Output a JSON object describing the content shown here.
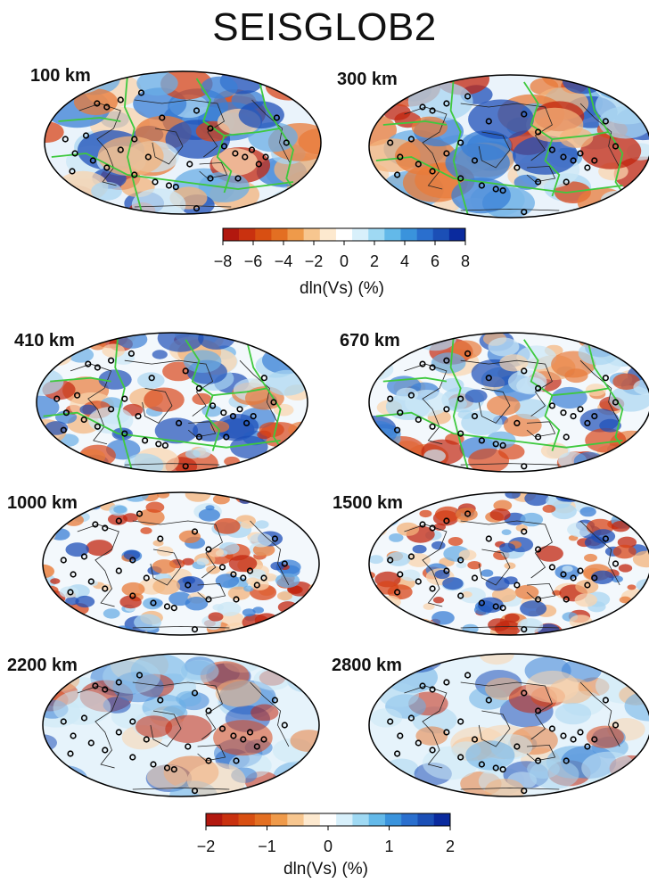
{
  "title": "SEISGLOB2",
  "maps": [
    {
      "depth_label": "100 km"
    },
    {
      "depth_label": "300 km"
    },
    {
      "depth_label": "410 km"
    },
    {
      "depth_label": "670 km"
    },
    {
      "depth_label": "1000 km"
    },
    {
      "depth_label": "1500 km"
    },
    {
      "depth_label": "2200 km"
    },
    {
      "depth_label": "2800 km"
    }
  ],
  "colorbars": [
    {
      "ticks": [
        "−8",
        "−6",
        "−4",
        "−2",
        "0",
        "2",
        "4",
        "6",
        "8"
      ],
      "range": [
        -8,
        8
      ],
      "unit_label": "dln(Vs) (%)"
    },
    {
      "ticks": [
        "−2",
        "−1",
        "0",
        "1",
        "2"
      ],
      "range": [
        -2,
        2
      ],
      "unit_label": "dln(Vs) (%)"
    }
  ],
  "colors": {
    "slow": "#b2180f",
    "neutral": "#ffffff",
    "fast": "#0a2a9e",
    "plate_boundaries": "#3ec93e",
    "coastlines": "#222222",
    "stations": "#000000"
  }
}
